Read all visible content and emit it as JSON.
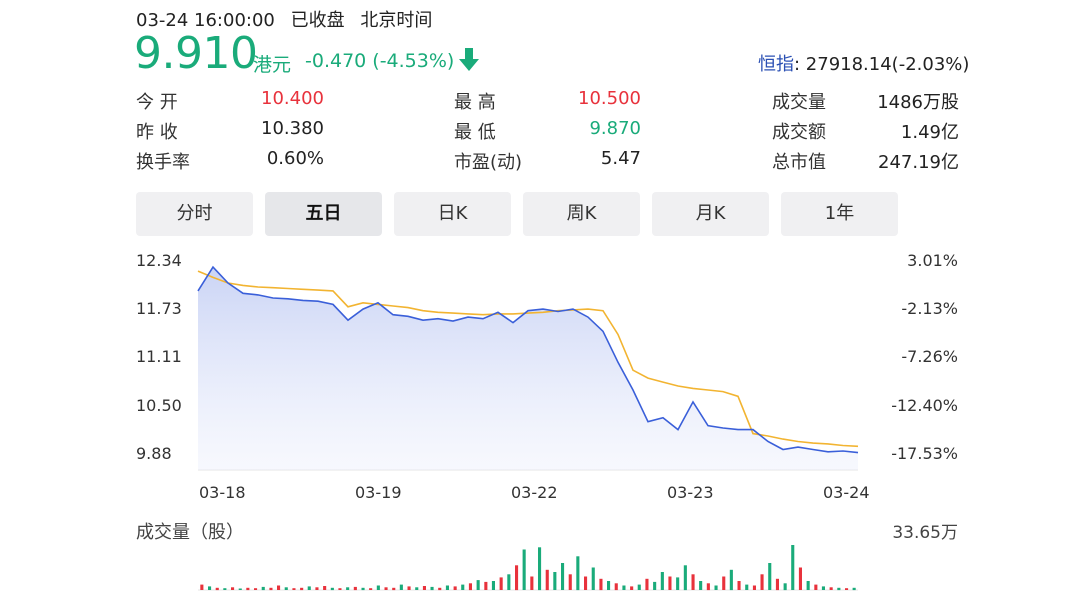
{
  "header": {
    "datetime": "03-24 16:00:00",
    "market_status": "已收盘",
    "timezone": "北京时间",
    "price": "9.910",
    "currency": "港元",
    "change": "-0.470 (-4.53%)",
    "index_name": "恒指",
    "index_value": ": 27918.14(-2.03%)"
  },
  "stats": {
    "open_label": "今  开",
    "open": "10.400",
    "prev_close_label": "昨  收",
    "prev_close": "10.380",
    "turnover_rate_label": "换手率",
    "turnover_rate": "0.60%",
    "high_label": "最  高",
    "high": "10.500",
    "low_label": "最  低",
    "low": "9.870",
    "pe_label": "市盈(动)",
    "pe": "5.47",
    "volume_label": "成交量",
    "volume": "1486万股",
    "amount_label": "成交额",
    "amount": "1.49亿",
    "market_cap_label": "总市值",
    "market_cap": "247.19亿"
  },
  "tabs": [
    {
      "label": "分时",
      "active": false
    },
    {
      "label": "五日",
      "active": true
    },
    {
      "label": "日K",
      "active": false
    },
    {
      "label": "周K",
      "active": false
    },
    {
      "label": "月K",
      "active": false
    },
    {
      "label": "1年",
      "active": false
    }
  ],
  "colors": {
    "up": "#e8323c",
    "down": "#1aab7a",
    "price_line": "#3a5fd9",
    "avg_line": "#f2b431"
  },
  "chart_data": {
    "type": "line",
    "y_ticks_left": [
      "12.34",
      "11.73",
      "11.11",
      "10.50",
      "9.88"
    ],
    "y_ticks_right": [
      "3.01%",
      "-2.13%",
      "-7.26%",
      "-12.40%",
      "-17.53%"
    ],
    "ylim": [
      9.88,
      12.34
    ],
    "x_ticks": [
      "03-18",
      "03-19",
      "03-22",
      "03-23",
      "03-24"
    ],
    "grid": false,
    "series": [
      {
        "values": [
          11.95,
          12.25,
          12.05,
          11.92,
          11.9,
          11.86,
          11.85,
          11.83,
          11.82,
          11.78,
          11.58,
          11.72,
          11.8,
          11.65,
          11.63,
          11.58,
          11.6,
          11.57,
          11.62,
          11.6,
          11.68,
          11.55,
          11.7,
          11.72,
          11.69,
          11.72,
          11.62,
          11.44,
          11.05,
          10.7,
          10.3,
          10.35,
          10.2,
          10.55,
          10.25,
          10.22,
          10.2,
          10.2,
          10.05,
          9.95,
          9.98,
          9.95,
          9.92,
          9.93,
          9.91
        ]
      },
      {
        "values": [
          12.2,
          12.12,
          12.05,
          12.02,
          12.0,
          11.99,
          11.98,
          11.97,
          11.96,
          11.95,
          11.75,
          11.8,
          11.78,
          11.76,
          11.74,
          11.7,
          11.68,
          11.67,
          11.66,
          11.65,
          11.66,
          11.66,
          11.67,
          11.68,
          11.7,
          11.71,
          11.72,
          11.7,
          11.4,
          10.95,
          10.85,
          10.8,
          10.75,
          10.72,
          10.7,
          10.68,
          10.62,
          10.15,
          10.12,
          10.08,
          10.05,
          10.03,
          10.02,
          10.0,
          9.99
        ]
      }
    ]
  },
  "volume_chart": {
    "label": "成交量（股）",
    "max_label": "33.65万",
    "bars": [
      {
        "v": 0.12,
        "c": "up"
      },
      {
        "v": 0.08,
        "c": "down"
      },
      {
        "v": 0.05,
        "c": "up"
      },
      {
        "v": 0.04,
        "c": "down"
      },
      {
        "v": 0.06,
        "c": "up"
      },
      {
        "v": 0.03,
        "c": "down"
      },
      {
        "v": 0.05,
        "c": "up"
      },
      {
        "v": 0.04,
        "c": "up"
      },
      {
        "v": 0.07,
        "c": "down"
      },
      {
        "v": 0.05,
        "c": "up"
      },
      {
        "v": 0.1,
        "c": "up"
      },
      {
        "v": 0.06,
        "c": "down"
      },
      {
        "v": 0.04,
        "c": "up"
      },
      {
        "v": 0.05,
        "c": "up"
      },
      {
        "v": 0.08,
        "c": "down"
      },
      {
        "v": 0.06,
        "c": "up"
      },
      {
        "v": 0.09,
        "c": "up"
      },
      {
        "v": 0.05,
        "c": "down"
      },
      {
        "v": 0.04,
        "c": "up"
      },
      {
        "v": 0.06,
        "c": "down"
      },
      {
        "v": 0.07,
        "c": "up"
      },
      {
        "v": 0.05,
        "c": "down"
      },
      {
        "v": 0.04,
        "c": "up"
      },
      {
        "v": 0.1,
        "c": "down"
      },
      {
        "v": 0.06,
        "c": "up"
      },
      {
        "v": 0.05,
        "c": "up"
      },
      {
        "v": 0.12,
        "c": "down"
      },
      {
        "v": 0.08,
        "c": "up"
      },
      {
        "v": 0.06,
        "c": "down"
      },
      {
        "v": 0.09,
        "c": "up"
      },
      {
        "v": 0.07,
        "c": "down"
      },
      {
        "v": 0.05,
        "c": "up"
      },
      {
        "v": 0.1,
        "c": "down"
      },
      {
        "v": 0.08,
        "c": "up"
      },
      {
        "v": 0.12,
        "c": "down"
      },
      {
        "v": 0.15,
        "c": "up"
      },
      {
        "v": 0.22,
        "c": "down"
      },
      {
        "v": 0.18,
        "c": "up"
      },
      {
        "v": 0.2,
        "c": "down"
      },
      {
        "v": 0.28,
        "c": "up"
      },
      {
        "v": 0.35,
        "c": "down"
      },
      {
        "v": 0.55,
        "c": "up"
      },
      {
        "v": 0.9,
        "c": "down"
      },
      {
        "v": 0.3,
        "c": "up"
      },
      {
        "v": 0.95,
        "c": "down"
      },
      {
        "v": 0.45,
        "c": "up"
      },
      {
        "v": 0.4,
        "c": "down"
      },
      {
        "v": 0.6,
        "c": "down"
      },
      {
        "v": 0.35,
        "c": "up"
      },
      {
        "v": 0.75,
        "c": "down"
      },
      {
        "v": 0.3,
        "c": "up"
      },
      {
        "v": 0.5,
        "c": "down"
      },
      {
        "v": 0.25,
        "c": "up"
      },
      {
        "v": 0.2,
        "c": "down"
      },
      {
        "v": 0.15,
        "c": "up"
      },
      {
        "v": 0.1,
        "c": "down"
      },
      {
        "v": 0.08,
        "c": "up"
      },
      {
        "v": 0.12,
        "c": "down"
      },
      {
        "v": 0.25,
        "c": "up"
      },
      {
        "v": 0.18,
        "c": "down"
      },
      {
        "v": 0.4,
        "c": "down"
      },
      {
        "v": 0.3,
        "c": "up"
      },
      {
        "v": 0.28,
        "c": "down"
      },
      {
        "v": 0.55,
        "c": "down"
      },
      {
        "v": 0.35,
        "c": "up"
      },
      {
        "v": 0.2,
        "c": "down"
      },
      {
        "v": 0.15,
        "c": "up"
      },
      {
        "v": 0.1,
        "c": "down"
      },
      {
        "v": 0.3,
        "c": "up"
      },
      {
        "v": 0.45,
        "c": "down"
      },
      {
        "v": 0.2,
        "c": "up"
      },
      {
        "v": 0.12,
        "c": "down"
      },
      {
        "v": 0.1,
        "c": "up"
      },
      {
        "v": 0.35,
        "c": "up"
      },
      {
        "v": 0.6,
        "c": "down"
      },
      {
        "v": 0.25,
        "c": "up"
      },
      {
        "v": 0.15,
        "c": "down"
      },
      {
        "v": 1.0,
        "c": "down"
      },
      {
        "v": 0.5,
        "c": "up"
      },
      {
        "v": 0.2,
        "c": "down"
      },
      {
        "v": 0.12,
        "c": "up"
      },
      {
        "v": 0.08,
        "c": "down"
      },
      {
        "v": 0.06,
        "c": "up"
      },
      {
        "v": 0.05,
        "c": "down"
      },
      {
        "v": 0.04,
        "c": "up"
      },
      {
        "v": 0.05,
        "c": "down"
      }
    ]
  }
}
